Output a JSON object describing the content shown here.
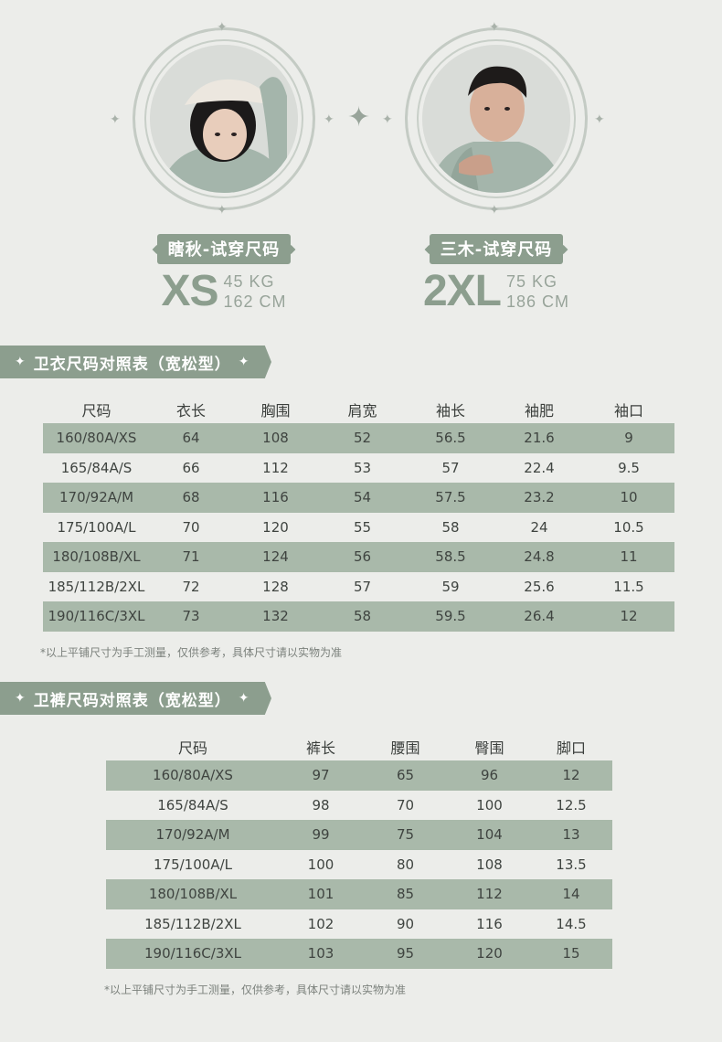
{
  "models": [
    {
      "name": "瞎秋-试穿尺码",
      "size": "XS",
      "weight": "45 KG",
      "height": "162 CM"
    },
    {
      "name": "三木-试穿尺码",
      "size": "2XL",
      "weight": "75 KG",
      "height": "186 CM"
    }
  ],
  "hoodie": {
    "title": "卫衣尺码对照表（宽松型）",
    "headers": [
      "尺码",
      "衣长",
      "胸围",
      "肩宽",
      "袖长",
      "袖肥",
      "袖口"
    ],
    "rows": [
      [
        "160/80A/XS",
        "64",
        "108",
        "52",
        "56.5",
        "21.6",
        "9"
      ],
      [
        "165/84A/S",
        "66",
        "112",
        "53",
        "57",
        "22.4",
        "9.5"
      ],
      [
        "170/92A/M",
        "68",
        "116",
        "54",
        "57.5",
        "23.2",
        "10"
      ],
      [
        "175/100A/L",
        "70",
        "120",
        "55",
        "58",
        "24",
        "10.5"
      ],
      [
        "180/108B/XL",
        "71",
        "124",
        "56",
        "58.5",
        "24.8",
        "11"
      ],
      [
        "185/112B/2XL",
        "72",
        "128",
        "57",
        "59",
        "25.6",
        "11.5"
      ],
      [
        "190/116C/3XL",
        "73",
        "132",
        "58",
        "59.5",
        "26.4",
        "12"
      ]
    ],
    "note": "*以上平铺尺寸为手工测量，仅供参考，具体尺寸请以实物为准"
  },
  "pants": {
    "title": "卫裤尺码对照表（宽松型）",
    "headers": [
      "尺码",
      "裤长",
      "腰围",
      "臀围",
      "脚口"
    ],
    "rows": [
      [
        "160/80A/XS",
        "97",
        "65",
        "96",
        "12"
      ],
      [
        "165/84A/S",
        "98",
        "70",
        "100",
        "12.5"
      ],
      [
        "170/92A/M",
        "99",
        "75",
        "104",
        "13"
      ],
      [
        "175/100A/L",
        "100",
        "80",
        "108",
        "13.5"
      ],
      [
        "180/108B/XL",
        "101",
        "85",
        "112",
        "14"
      ],
      [
        "185/112B/2XL",
        "102",
        "90",
        "116",
        "14.5"
      ],
      [
        "190/116C/3XL",
        "103",
        "95",
        "120",
        "15"
      ]
    ],
    "note": "*以上平铺尺寸为手工测量，仅供参考，具体尺寸请以实物为准"
  },
  "colors": {
    "accent": "#8c9e8e",
    "row_shade": "#a9b9aa",
    "background": "#ecedea"
  }
}
